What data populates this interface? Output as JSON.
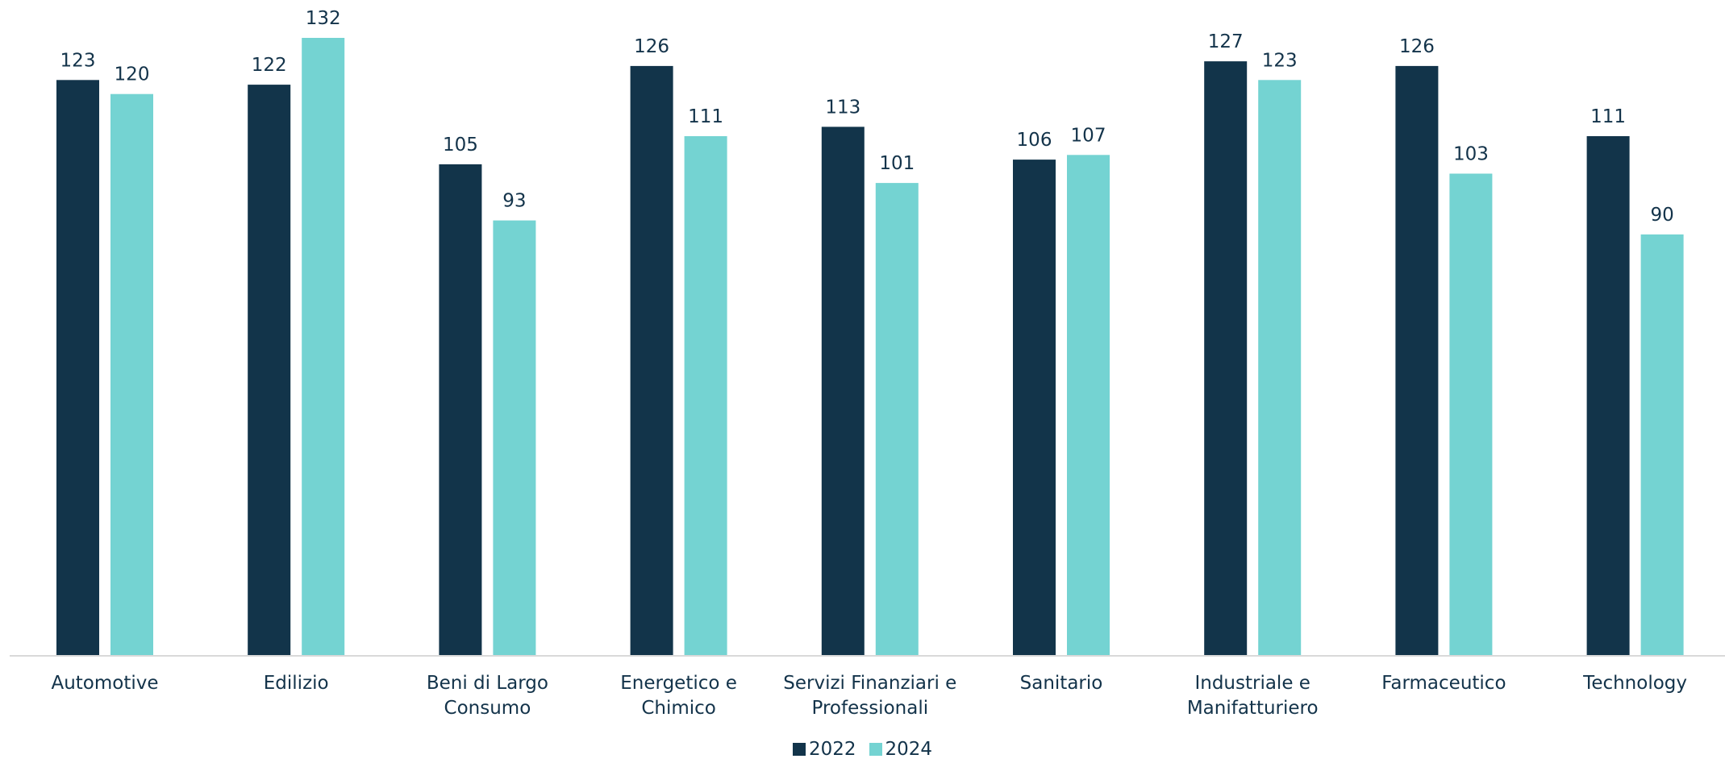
{
  "chart_data": {
    "type": "bar",
    "categories": [
      [
        "Automotive"
      ],
      [
        "Edilizio"
      ],
      [
        "Beni di Largo",
        "Consumo"
      ],
      [
        "Energetico e",
        "Chimico"
      ],
      [
        "Servizi Finanziari e",
        "Professionali"
      ],
      [
        "Sanitario"
      ],
      [
        "Industriale e",
        "Manifatturiero"
      ],
      [
        "Farmaceutico"
      ],
      [
        "Technology"
      ]
    ],
    "series": [
      {
        "name": "2022",
        "color": "#12344a",
        "values": [
          123,
          122,
          105,
          126,
          113,
          106,
          127,
          126,
          111
        ]
      },
      {
        "name": "2024",
        "color": "#74d3d2",
        "values": [
          120,
          132,
          93,
          111,
          101,
          107,
          123,
          103,
          90
        ]
      }
    ],
    "ylim": [
      0,
      132
    ],
    "grid": false,
    "legend_position": "bottom-center",
    "title": "",
    "xlabel": "",
    "ylabel": ""
  }
}
